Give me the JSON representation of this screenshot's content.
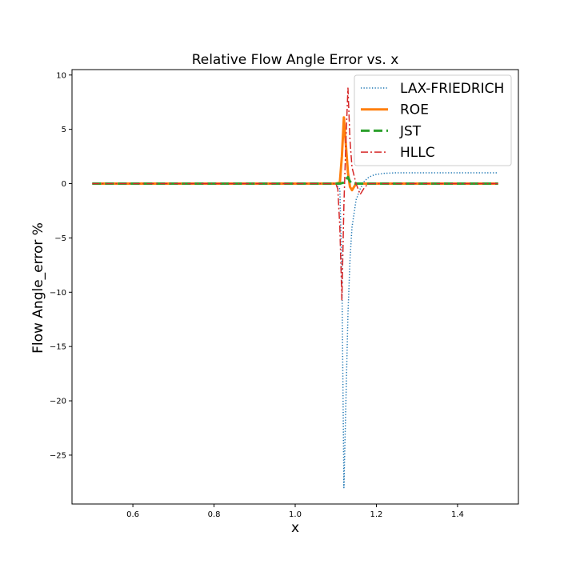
{
  "chart_data": {
    "type": "line",
    "title": "Relative Flow Angle Error vs. x",
    "xlabel": "x",
    "ylabel": "Flow Angle_error %",
    "xlim": [
      0.45,
      1.55
    ],
    "ylim": [
      -29.5,
      10.5
    ],
    "xticks": [
      0.6,
      0.8,
      1.0,
      1.2,
      1.4
    ],
    "xtick_labels": [
      "0.6",
      "0.8",
      "1.0",
      "1.2",
      "1.4"
    ],
    "yticks": [
      10,
      5,
      0,
      -5,
      -10,
      -15,
      -20,
      -25
    ],
    "ytick_labels": [
      "10",
      "5",
      "0",
      "−5",
      "−10",
      "−15",
      "−20",
      "−25"
    ],
    "grid": false,
    "legend_position": "upper right",
    "series": [
      {
        "name": "LAX-FRIEDRICH",
        "color": "#1f77b4",
        "style": "dotted",
        "x": [
          0.5,
          1.1,
          1.11,
          1.115,
          1.12,
          1.125,
          1.13,
          1.135,
          1.14,
          1.15,
          1.16,
          1.17,
          1.18,
          1.19,
          1.2,
          1.22,
          1.25,
          1.3,
          1.4,
          1.5
        ],
        "y": [
          0,
          0,
          -0.5,
          -8,
          -28,
          -20,
          -12,
          -7,
          -4,
          -1.5,
          -0.5,
          0.2,
          0.55,
          0.75,
          0.85,
          0.95,
          1.0,
          1.0,
          1.0,
          1.0
        ]
      },
      {
        "name": "ROE",
        "color": "#ff7f0e",
        "style": "solid",
        "x": [
          0.5,
          1.1,
          1.11,
          1.115,
          1.12,
          1.125,
          1.13,
          1.135,
          1.14,
          1.145,
          1.15,
          1.16,
          1.5
        ],
        "y": [
          0,
          0,
          0.1,
          2.5,
          6.1,
          3.5,
          1.0,
          -0.3,
          -0.6,
          -0.3,
          0,
          0,
          0
        ]
      },
      {
        "name": "JST",
        "color": "#2ca02c",
        "style": "dashed",
        "x": [
          0.5,
          1.11,
          1.12,
          1.125,
          1.13,
          1.135,
          1.14,
          1.5
        ],
        "y": [
          0,
          0,
          0.1,
          0.4,
          0.6,
          0.2,
          0,
          0
        ]
      },
      {
        "name": "HLLC",
        "color": "#d62728",
        "style": "dashdot",
        "x": [
          0.5,
          1.1,
          1.105,
          1.11,
          1.115,
          1.12,
          1.125,
          1.13,
          1.135,
          1.14,
          1.15,
          1.16,
          1.17,
          1.18,
          1.5
        ],
        "y": [
          0,
          0,
          -0.5,
          -4,
          -10.7,
          -2,
          4,
          8.8,
          4,
          1.5,
          0,
          -1,
          -0.4,
          0,
          0
        ]
      }
    ]
  }
}
